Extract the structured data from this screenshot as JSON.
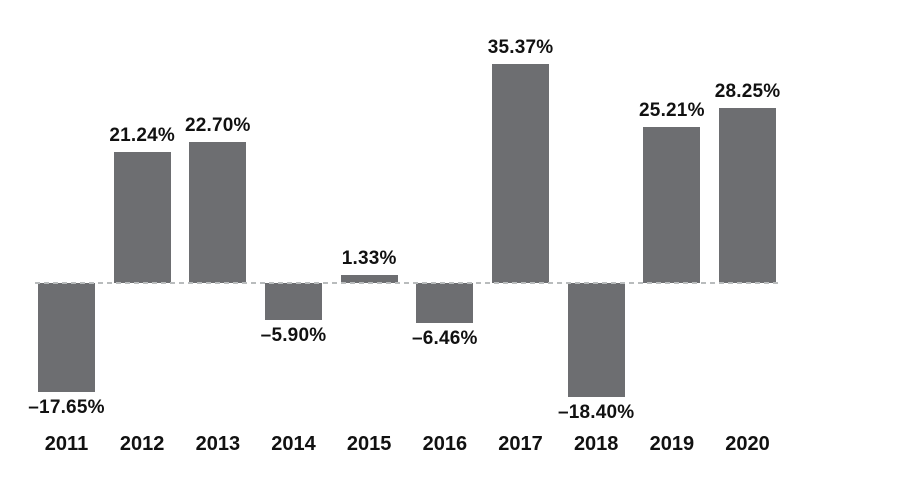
{
  "chart_data": {
    "type": "bar",
    "title": "",
    "xlabel": "",
    "ylabel": "",
    "categories": [
      "2011",
      "2012",
      "2013",
      "2014",
      "2015",
      "2016",
      "2017",
      "2018",
      "2019",
      "2020"
    ],
    "values": [
      -17.65,
      21.24,
      22.7,
      -5.9,
      1.33,
      -6.46,
      35.37,
      -18.4,
      25.21,
      28.25
    ],
    "value_labels": [
      "–17.65%",
      "21.24%",
      "22.70%",
      "–5.90%",
      "1.33%",
      "–6.46%",
      "35.37%",
      "–18.40%",
      "25.21%",
      "28.25%"
    ],
    "ylim": [
      -25,
      40
    ],
    "grid": false,
    "legend": null,
    "zero_line": "dashed",
    "colors": {
      "bar": "#6d6e71",
      "baseline": "#b9bcbd",
      "label": "#111111",
      "background": "#ffffff"
    }
  }
}
